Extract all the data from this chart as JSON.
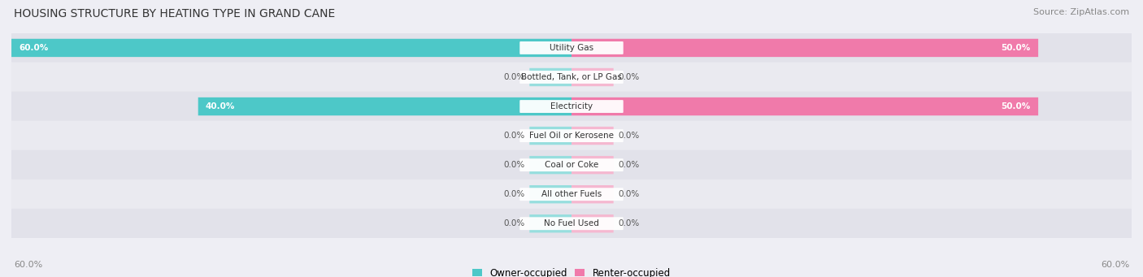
{
  "title": "HOUSING STRUCTURE BY HEATING TYPE IN GRAND CANE",
  "source": "Source: ZipAtlas.com",
  "categories": [
    "Utility Gas",
    "Bottled, Tank, or LP Gas",
    "Electricity",
    "Fuel Oil or Kerosene",
    "Coal or Coke",
    "All other Fuels",
    "No Fuel Used"
  ],
  "owner_values": [
    60.0,
    0.0,
    40.0,
    0.0,
    0.0,
    0.0,
    0.0
  ],
  "renter_values": [
    50.0,
    0.0,
    50.0,
    0.0,
    0.0,
    0.0,
    0.0
  ],
  "owner_color": "#4dc8c8",
  "renter_color": "#f07aaa",
  "owner_color_zero": "#97dede",
  "renter_color_zero": "#f5b8d0",
  "background_color": "#eeeef4",
  "row_bg_even": "#e2e2ea",
  "row_bg_odd": "#eaeaf0",
  "axis_max": 60.0,
  "zero_stub": 4.5,
  "title_fontsize": 10,
  "source_fontsize": 8,
  "legend_fontsize": 8.5,
  "value_fontsize": 7.5,
  "category_fontsize": 7.5,
  "axis_label_fontsize": 8
}
